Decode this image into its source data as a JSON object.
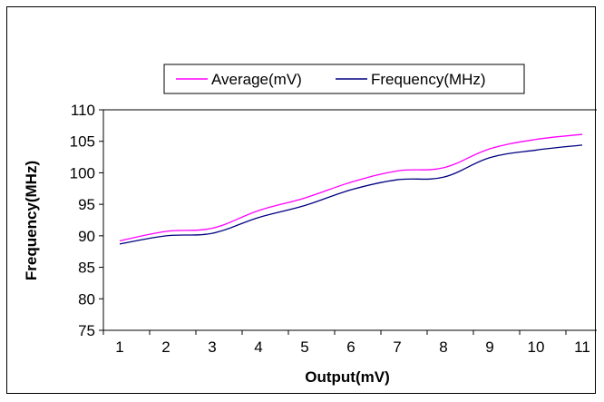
{
  "chart_data": {
    "type": "line",
    "title": "",
    "xlabel": "Output(mV)",
    "ylabel": "Frequency(MHz)",
    "categories": [
      "1",
      "2",
      "3",
      "4",
      "5",
      "6",
      "7",
      "8",
      "9",
      "10",
      "11"
    ],
    "ylim": [
      75,
      110
    ],
    "yticks": [
      75,
      80,
      85,
      90,
      95,
      100,
      105,
      110
    ],
    "grid": false,
    "legend_position": "top",
    "series": [
      {
        "name": "Average(mV)",
        "color": "#ff00ff",
        "values": [
          89.2,
          90.7,
          91.2,
          94.0,
          96.0,
          98.5,
          100.3,
          100.8,
          103.8,
          105.3,
          106.1
        ]
      },
      {
        "name": "Frequency(MHz)",
        "color": "#000080",
        "values": [
          88.7,
          90.0,
          90.4,
          92.9,
          94.8,
          97.3,
          98.9,
          99.3,
          102.4,
          103.6,
          104.4
        ]
      }
    ]
  }
}
